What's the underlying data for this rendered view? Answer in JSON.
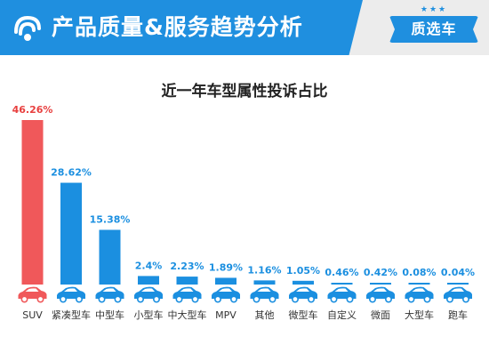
{
  "header": {
    "title": "产品质量&服务趋势分析",
    "badge_label": "质选车",
    "badge_stars": "★★★",
    "logo_icon": "brand-logo-icon"
  },
  "colors": {
    "header_bg": "#1f8fdf",
    "highlight_bar": "#f0585a",
    "bar": "#1b8fe0",
    "car_icon": "#1b8fe0",
    "highlight_label": "#e8403f",
    "label": "#1b8fe0"
  },
  "chart_data": {
    "type": "bar",
    "title": "近一年车型属性投诉占比",
    "categories": [
      "SUV",
      "紧凑型车",
      "中型车",
      "小型车",
      "中大型车",
      "MPV",
      "其他",
      "微型车",
      "自定义",
      "微面",
      "大型车",
      "跑车"
    ],
    "values": [
      46.26,
      28.62,
      15.38,
      2.4,
      2.23,
      1.89,
      1.16,
      1.05,
      0.46,
      0.42,
      0.08,
      0.04
    ],
    "value_labels": [
      "46.26%",
      "28.62%",
      "15.38%",
      "2.4%",
      "2.23%",
      "1.89%",
      "1.16%",
      "1.05%",
      "0.46%",
      "0.42%",
      "0.08%",
      "0.04%"
    ],
    "highlight_index": 0,
    "ylim": [
      0,
      46.26
    ],
    "xlabel": "",
    "ylabel": "",
    "grid": false,
    "legend": false
  }
}
